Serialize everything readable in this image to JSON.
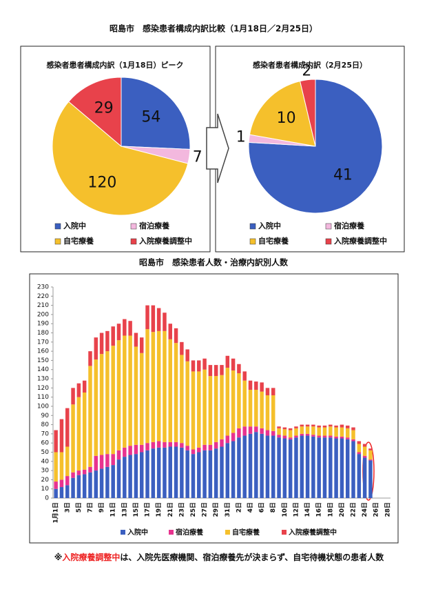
{
  "title": "昭島市　感染患者構成内訳比較（1月18日／2月25日）",
  "footnote": [
    "※",
    "入院療養調整中",
    "は、入院先医療機関、宿泊療養先が決まらず、自宅待機状態の患者人数"
  ],
  "chart_data": [
    {
      "type": "pie",
      "title": "感染者患者構成内訳（1月18日）ピーク",
      "categories": [
        "入院中",
        "宿泊療養",
        "自宅療養",
        "入院療養調整中"
      ],
      "values": [
        54,
        7,
        120,
        29
      ],
      "colors": [
        "#3b5fc0",
        "#f3b8de",
        "#f5c02c",
        "#e8424b"
      ]
    },
    {
      "type": "pie",
      "title": "感染者患者構成内訳（2月25日）",
      "categories": [
        "入院中",
        "宿泊療養",
        "自宅療養",
        "入院療養調整中"
      ],
      "values": [
        41,
        1,
        10,
        2
      ],
      "colors": [
        "#3b5fc0",
        "#f3b8de",
        "#f5c02c",
        "#e8424b"
      ]
    },
    {
      "type": "stacked_bar",
      "title": "昭島市　感染患者人数・治療内訳別人数",
      "categories": [
        "1月1日",
        null,
        "3日",
        null,
        "5日",
        null,
        "7日",
        null,
        "9日",
        null,
        "11日",
        null,
        "13日",
        null,
        "15日",
        null,
        "17日",
        null,
        "19日",
        null,
        "21日",
        null,
        "23日",
        null,
        "25日",
        null,
        "27日",
        null,
        "29日",
        null,
        "31日",
        null,
        "2日",
        null,
        "4日",
        null,
        "6日",
        null,
        "8日",
        null,
        "10日",
        null,
        "12日",
        null,
        "14日",
        null,
        "16日",
        null,
        "18日",
        null,
        "20日",
        null,
        "22日",
        null,
        "24日",
        null,
        "26日",
        null,
        "28日"
      ],
      "series": [
        {
          "name": "入院中",
          "color": "#3b5fc0",
          "values": [
            10,
            12,
            14,
            22,
            25,
            26,
            28,
            30,
            32,
            34,
            36,
            42,
            45,
            47,
            48,
            50,
            52,
            54,
            55,
            55,
            56,
            56,
            55,
            52,
            48,
            50,
            52,
            52,
            54,
            56,
            60,
            62,
            66,
            68,
            70,
            72,
            70,
            68,
            68,
            66,
            65,
            64,
            66,
            68,
            68,
            67,
            66,
            66,
            66,
            65,
            65,
            64,
            62,
            48,
            44,
            41,
            null,
            null,
            null
          ]
        },
        {
          "name": "宿泊療養",
          "color": "#e8338f",
          "values": [
            8,
            8,
            10,
            6,
            5,
            5,
            6,
            16,
            15,
            14,
            12,
            10,
            10,
            10,
            10,
            8,
            8,
            7,
            7,
            6,
            5,
            5,
            5,
            5,
            5,
            5,
            6,
            6,
            7,
            8,
            8,
            9,
            10,
            10,
            8,
            6,
            6,
            6,
            5,
            3,
            3,
            2,
            2,
            2,
            2,
            2,
            2,
            2,
            2,
            2,
            2,
            2,
            2,
            2,
            2,
            1,
            null,
            null,
            null
          ]
        },
        {
          "name": "自宅療養",
          "color": "#f5c02c",
          "values": [
            32,
            30,
            32,
            74,
            80,
            84,
            110,
            105,
            110,
            112,
            118,
            120,
            122,
            120,
            107,
            100,
            124,
            120,
            120,
            121,
            112,
            108,
            96,
            92,
            85,
            83,
            82,
            75,
            72,
            70,
            74,
            68,
            60,
            50,
            40,
            40,
            40,
            38,
            39,
            7,
            7,
            8,
            8,
            8,
            8,
            9,
            9,
            9,
            10,
            10,
            10,
            10,
            10,
            9,
            10,
            10,
            null,
            null,
            null
          ]
        },
        {
          "name": "入院療養調整中",
          "color": "#e8424b",
          "values": [
            24,
            36,
            42,
            18,
            15,
            13,
            16,
            24,
            23,
            22,
            21,
            18,
            18,
            16,
            15,
            17,
            26,
            29,
            25,
            20,
            17,
            16,
            14,
            13,
            12,
            12,
            12,
            12,
            12,
            11,
            13,
            13,
            10,
            10,
            10,
            9,
            10,
            8,
            8,
            2,
            2,
            2,
            2,
            2,
            2,
            2,
            2,
            2,
            2,
            2,
            3,
            3,
            3,
            3,
            3,
            2,
            null,
            null,
            null
          ]
        }
      ],
      "ylim": [
        0,
        230
      ],
      "yticks": [
        0,
        10,
        20,
        30,
        40,
        50,
        60,
        70,
        80,
        90,
        100,
        110,
        120,
        130,
        140,
        150,
        160,
        170,
        180,
        190,
        200,
        210,
        220,
        230
      ],
      "grid": false
    }
  ]
}
